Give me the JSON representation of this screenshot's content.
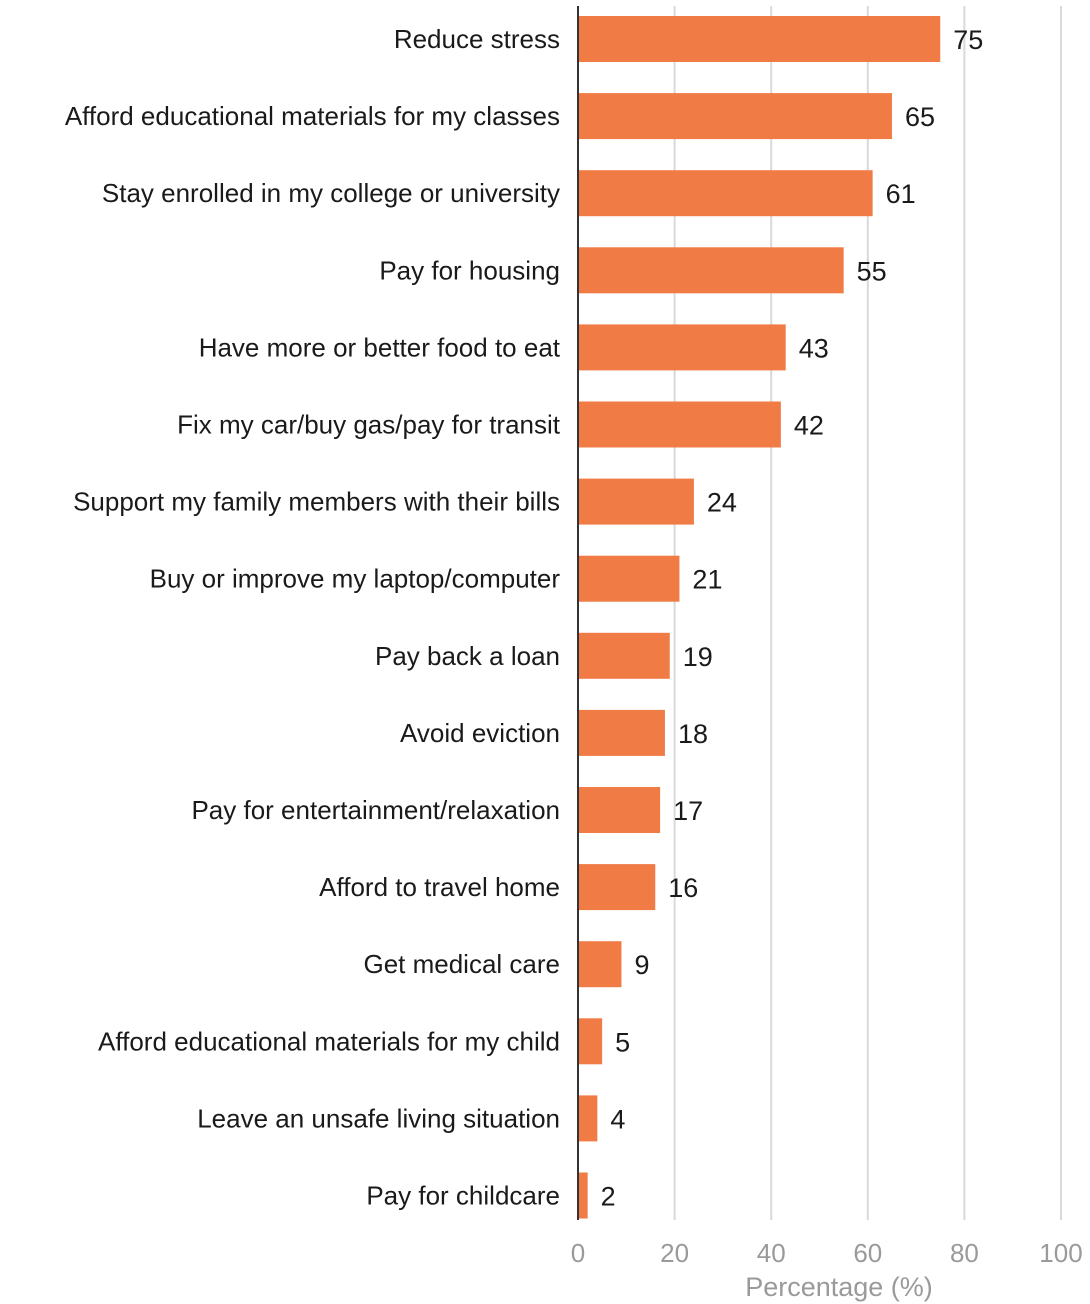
{
  "chart_data": {
    "type": "bar",
    "orientation": "horizontal",
    "categories": [
      "Reduce stress",
      "Afford educational materials for my classes",
      "Stay enrolled in my college or university",
      "Pay for housing",
      "Have more or better food to eat",
      "Fix my car/buy gas/pay for transit",
      "Support my family members with their bills",
      "Buy or improve my laptop/computer",
      "Pay back a loan",
      "Avoid eviction",
      "Pay for entertainment/relaxation",
      "Afford to travel home",
      "Get medical care",
      "Afford educational materials for my child",
      "Leave an unsafe living situation",
      "Pay for childcare"
    ],
    "values": [
      75,
      65,
      61,
      55,
      43,
      42,
      24,
      21,
      19,
      18,
      17,
      16,
      9,
      5,
      4,
      2
    ],
    "xlabel": "Percentage (%)",
    "ylabel": "",
    "xlim": [
      0,
      100
    ],
    "xticks": [
      0,
      20,
      40,
      60,
      80,
      100
    ],
    "grid": true,
    "bar_color": "#f07b45",
    "gridline_color": "#d9d9d9",
    "axis_color": "#333333"
  }
}
